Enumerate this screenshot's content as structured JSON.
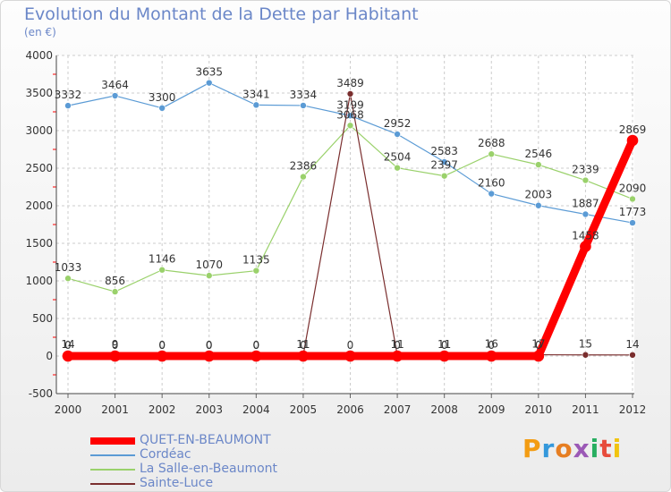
{
  "title": "Evolution du Montant de la Dette par Habitant",
  "subtitle": "(en €)",
  "brand": "Proxiti",
  "chart_data": {
    "type": "line",
    "title": "Evolution du Montant de la Dette par Habitant",
    "ylabel": "(en €)",
    "ylim": [
      -500,
      4000
    ],
    "yticks": [
      -500,
      0,
      500,
      1000,
      1500,
      2000,
      2500,
      3000,
      3500,
      4000
    ],
    "grid": true,
    "categories": [
      "2000",
      "2001",
      "2002",
      "2003",
      "2004",
      "2005",
      "2006",
      "2007",
      "2008",
      "2009",
      "2010",
      "2011",
      "2012"
    ],
    "series": [
      {
        "name": "Cordéac",
        "color": "#5b9bd5",
        "width": 1.2,
        "values": [
          3332,
          3464,
          3300,
          3635,
          3341,
          3334,
          3199,
          2952,
          2583,
          2160,
          2003,
          1887,
          1773
        ],
        "labels": [
          "3332",
          "3464",
          "3300",
          "3635",
          "3341",
          "3334",
          "3199",
          "2952",
          "2583",
          "2160",
          "2003",
          "1887",
          "1773"
        ]
      },
      {
        "name": "La Salle-en-Beaumont",
        "color": "#9ad16b",
        "width": 1.2,
        "values": [
          1033,
          856,
          1146,
          1070,
          1135,
          2386,
          3068,
          2504,
          2397,
          2688,
          2546,
          2339,
          2090
        ],
        "labels": [
          "1033",
          "856",
          "1146",
          "1070",
          "1135",
          "2386",
          "3068",
          "2504",
          "2397",
          "2688",
          "2546",
          "2339",
          "2090"
        ]
      },
      {
        "name": "Sainte-Luce",
        "color": "#7a2e2e",
        "width": 1.2,
        "values": [
          14,
          9,
          0,
          0,
          0,
          11,
          3489,
          11,
          11,
          16,
          17,
          15,
          14
        ],
        "labels": [
          "14",
          "9",
          "0",
          "0",
          "0",
          "11",
          "3489",
          "11",
          "11",
          "16",
          "17",
          "15",
          "14"
        ]
      },
      {
        "name": "QUET-EN-BEAUMONT",
        "color": "#ff0000",
        "width": 9,
        "values": [
          0,
          0,
          0,
          0,
          0,
          0,
          0,
          0,
          0,
          0,
          0,
          1458,
          2869
        ],
        "labels": [
          "0",
          "0",
          "0",
          "0",
          "0",
          "0",
          "0",
          "0",
          "0",
          "0",
          "0",
          "1458",
          "2869"
        ]
      }
    ]
  }
}
